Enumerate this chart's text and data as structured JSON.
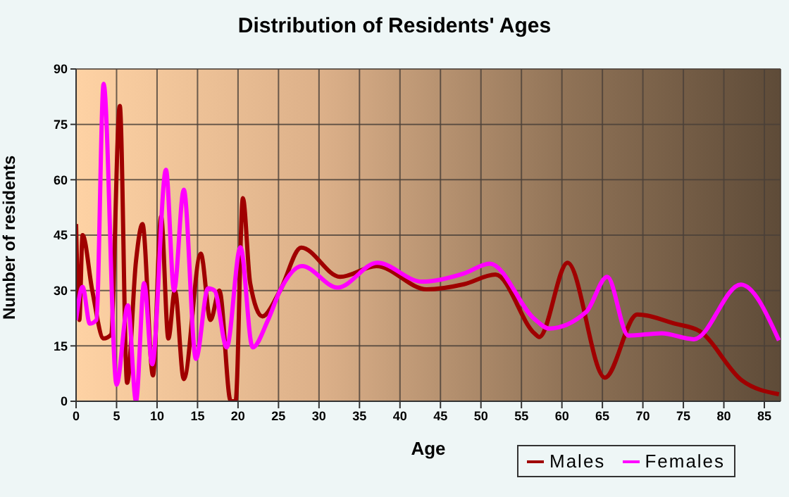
{
  "chart_data": {
    "type": "line",
    "title": "Distribution of Residents' Ages",
    "xlabel": "Age",
    "ylabel": "Number of residents",
    "xlim": [
      0,
      87
    ],
    "ylim": [
      0,
      90
    ],
    "xticks": [
      0,
      5,
      10,
      15,
      20,
      25,
      30,
      35,
      40,
      45,
      50,
      55,
      60,
      65,
      70,
      75,
      80,
      85
    ],
    "yticks": [
      0,
      15,
      30,
      45,
      60,
      75,
      90
    ],
    "grid": true,
    "legend": "bottom right",
    "marker": "none",
    "line_style": "solid",
    "series": [
      {
        "name": "Males",
        "color": "#a00000",
        "x": [
          0,
          0.4,
          0.8,
          2,
          3.4,
          4.3,
          5.4,
          6.3,
          7.4,
          8.2,
          9.5,
          10.5,
          11.4,
          12.2,
          13.3,
          15.4,
          16.6,
          17.7,
          19.1,
          19.7,
          20.6,
          21.5,
          23,
          25.2,
          27.8,
          32.6,
          37.1,
          43.3,
          47.9,
          51.8,
          56.6,
          57.2,
          60.7,
          65.3,
          69.3,
          74,
          77,
          82.2,
          86.8
        ],
        "values": [
          48,
          22,
          45,
          30,
          17,
          18,
          80,
          5,
          38,
          48,
          7,
          50,
          17,
          30,
          6,
          40,
          22,
          30,
          0,
          0,
          55,
          32,
          23,
          30,
          41.6,
          33.7,
          36.6,
          30.3,
          31.7,
          34.3,
          18.4,
          17.4,
          37.5,
          6.4,
          23.5,
          21,
          19,
          5.7,
          1.9
        ]
      },
      {
        "name": "Females",
        "color": "#ff00ff",
        "x": [
          0,
          0.8,
          1.7,
          2.5,
          3.4,
          5,
          6.4,
          7.4,
          8.4,
          9.4,
          11.1,
          12.1,
          13.3,
          14.8,
          16.3,
          17.1,
          18.6,
          20.3,
          21.8,
          23.7,
          25.2,
          27.9,
          32.3,
          37.2,
          42.7,
          48,
          51.1,
          56.6,
          58.4,
          63,
          65.6,
          68.2,
          72.3,
          76.3,
          82.1,
          86.8
        ],
        "values": [
          22,
          31,
          21,
          22,
          86,
          4.5,
          26,
          0,
          32,
          10,
          62.7,
          30,
          57.3,
          11.5,
          30.6,
          30,
          14.6,
          41.7,
          14.6,
          22,
          30,
          36.6,
          30.8,
          37.5,
          32.4,
          34.7,
          37.3,
          22.3,
          19.7,
          24.2,
          33.7,
          17.8,
          18.4,
          16.8,
          31.6,
          16.5
        ]
      }
    ]
  }
}
